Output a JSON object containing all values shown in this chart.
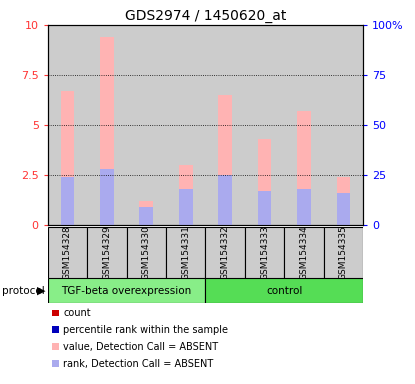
{
  "title": "GDS2974 / 1450620_at",
  "samples": [
    "GSM154328",
    "GSM154329",
    "GSM154330",
    "GSM154331",
    "GSM154332",
    "GSM154333",
    "GSM154334",
    "GSM154335"
  ],
  "pink_bar_heights": [
    6.7,
    9.4,
    1.2,
    3.0,
    6.5,
    4.3,
    5.7,
    2.4
  ],
  "blue_bar_heights": [
    2.4,
    2.8,
    0.9,
    1.8,
    2.5,
    1.7,
    1.8,
    1.6
  ],
  "ylim_left": [
    0,
    10
  ],
  "ylim_right": [
    0,
    100
  ],
  "yticks_left": [
    0,
    2.5,
    5.0,
    7.5,
    10
  ],
  "yticks_right": [
    0,
    25,
    50,
    75,
    100
  ],
  "ytick_labels_right": [
    "0",
    "25",
    "50",
    "75",
    "100%"
  ],
  "pink_color": "#FFB3B3",
  "blue_color": "#AAAAEE",
  "red_color": "#CC0000",
  "dark_blue_color": "#0000BB",
  "group1_label": "TGF-beta overexpression",
  "group2_label": "control",
  "group1_indices": [
    0,
    1,
    2,
    3
  ],
  "group2_indices": [
    4,
    5,
    6,
    7
  ],
  "group1_color": "#88EE88",
  "group2_color": "#55DD55",
  "protocol_label": "protocol",
  "legend_items": [
    {
      "color": "#CC0000",
      "label": "count"
    },
    {
      "color": "#0000BB",
      "label": "percentile rank within the sample"
    },
    {
      "color": "#FFB3B3",
      "label": "value, Detection Call = ABSENT"
    },
    {
      "color": "#AAAAEE",
      "label": "rank, Detection Call = ABSENT"
    }
  ],
  "left_tick_color": "#FF3333",
  "right_tick_color": "#0000FF",
  "bg_color": "#CCCCCC",
  "bar_width": 0.35
}
